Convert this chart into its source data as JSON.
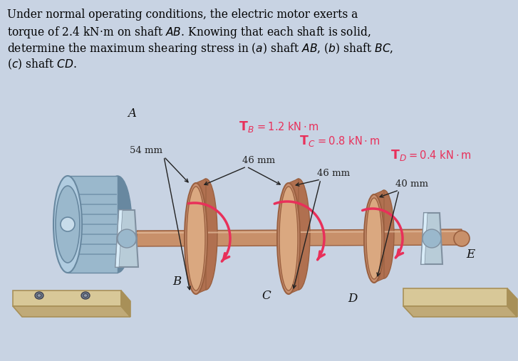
{
  "background_color": "#c8d3e3",
  "title_lines": [
    "Under normal operating conditions, the electric motor exerts a",
    "torque of 2.4 kN·m on shaft \\textit{AB}. Knowing that each shaft is solid,",
    "determine the maximum shearing stress in (\\textit{a}) shaft \\textit{AB}, (\\textit{b}) shaft \\textit{BC},",
    "(\\textit{c}) shaft \\textit{CD}."
  ],
  "title_fontsize": 11.5,
  "label_A": "A",
  "label_B": "B",
  "label_C": "C",
  "label_D": "D",
  "label_E": "E",
  "dim_54": "54 mm",
  "dim_46a": "46 mm",
  "dim_46b": "46 mm",
  "dim_40": "40 mm",
  "torque_color": "#e8305a",
  "shaft_color": "#c8906a",
  "shaft_dark": "#9a6040",
  "shaft_hi": "#e0b898",
  "disk_face": "#c89070",
  "disk_edge_c": "#9a6040",
  "disk_rim": "#b07050",
  "disk_hi": "#daa880",
  "motor_body": "#9ab8cc",
  "motor_front": "#b0cce0",
  "motor_dark": "#6888a0",
  "motor_rib": "#7898b0",
  "motor_center": "#c8dcea",
  "bracket_face": "#b8ccd8",
  "bracket_dark": "#8090a0",
  "bracket_hi": "#d8ecf8",
  "base_top": "#d8c898",
  "base_front": "#c0aa78",
  "base_side": "#a89058",
  "bolt_color": "#708090",
  "text_color": "#111111",
  "arrow_color": "#222222"
}
